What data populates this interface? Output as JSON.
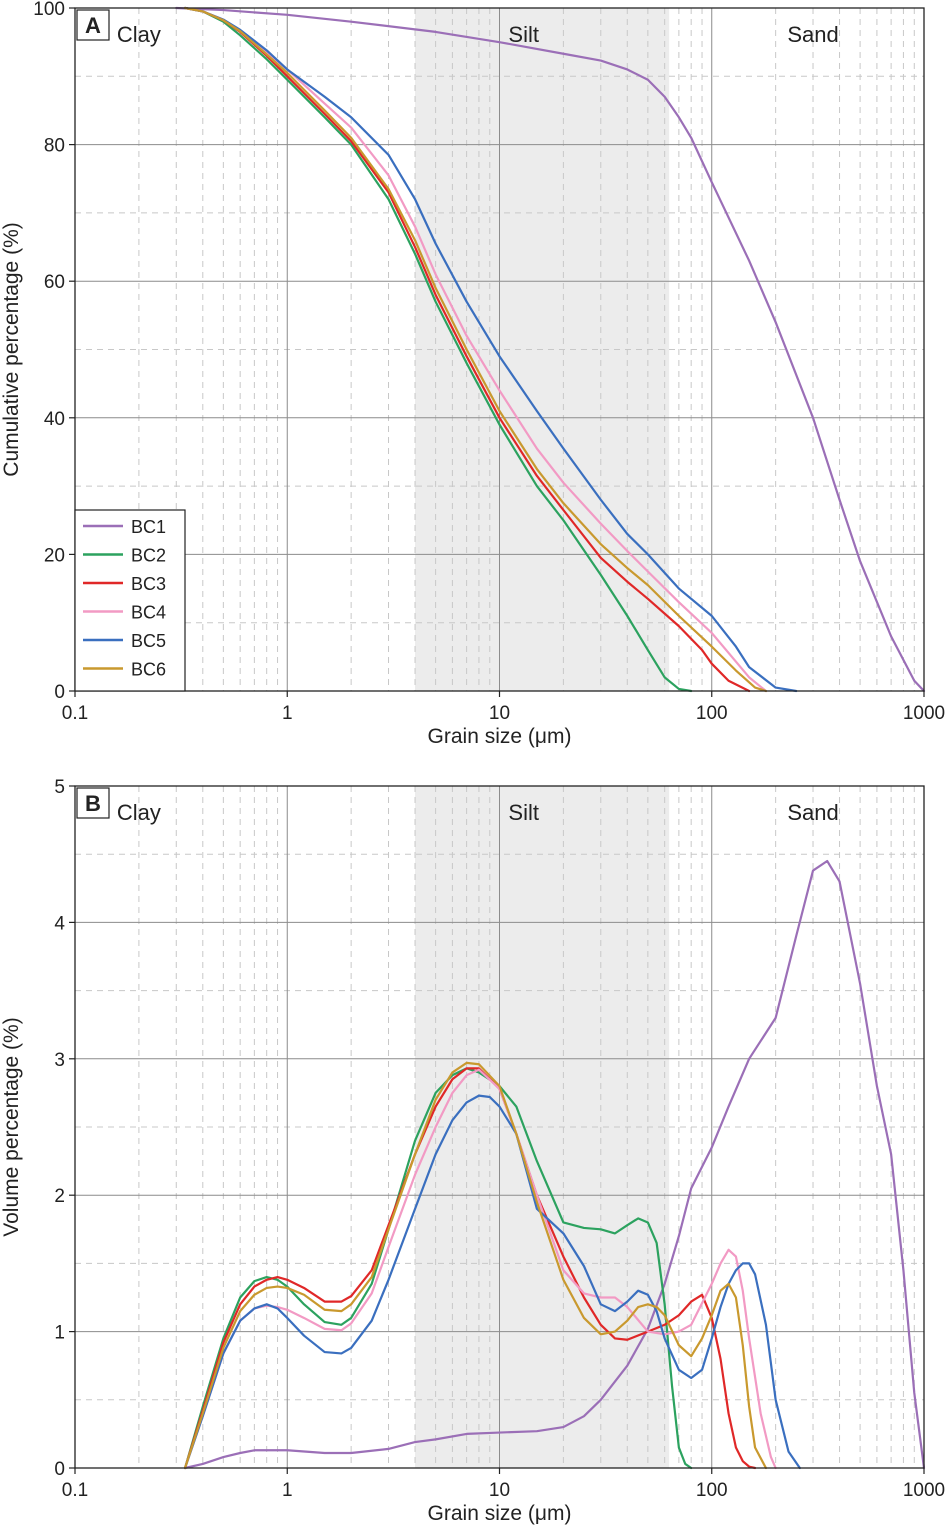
{
  "colors": {
    "BC1": "#9b6fb7",
    "BC2": "#2ca25f",
    "BC3": "#e02828",
    "BC4": "#f29ac4",
    "BC5": "#3a6fbf",
    "BC6": "#c9992e",
    "silt_band": "#ececec",
    "grid_major": "#8c8c8c",
    "grid_minor": "#c8c8c8"
  },
  "chart_data": [
    {
      "type": "line",
      "panel": "A",
      "xscale": "log",
      "xlabel": "Grain size (μm)",
      "ylabel": "Cumulative percentage (%)",
      "xlim": [
        0.1,
        1000
      ],
      "ylim": [
        0,
        100
      ],
      "xticks": [
        {
          "value": 0.1,
          "label": "0.1"
        },
        {
          "value": 1,
          "label": "1"
        },
        {
          "value": 10,
          "label": "10"
        },
        {
          "value": 100,
          "label": "100"
        },
        {
          "value": 1000,
          "label": "1000"
        }
      ],
      "yticks": [
        {
          "value": 0,
          "label": "0"
        },
        {
          "value": 20,
          "label": "20"
        },
        {
          "value": 40,
          "label": "40"
        },
        {
          "value": 60,
          "label": "60"
        },
        {
          "value": 80,
          "label": "80"
        },
        {
          "value": 100,
          "label": "100"
        }
      ],
      "zones": [
        {
          "label": "Clay",
          "at": 0.2
        },
        {
          "label": "Silt",
          "at": 13
        },
        {
          "label": "Sand",
          "at": 300
        }
      ],
      "silt_band": [
        4,
        63
      ],
      "legend": {
        "position": "bottom-left",
        "entries": [
          "BC1",
          "BC2",
          "BC3",
          "BC4",
          "BC5",
          "BC6"
        ]
      },
      "series": [
        {
          "name": "BC1",
          "x": [
            0.3,
            0.5,
            1,
            2,
            5,
            10,
            20,
            30,
            40,
            50,
            60,
            70,
            80,
            100,
            150,
            200,
            300,
            400,
            500,
            700,
            900,
            1000
          ],
          "y": [
            100,
            99.7,
            99,
            98,
            96.5,
            95,
            93.3,
            92.3,
            91,
            89.5,
            87,
            84,
            81,
            74.5,
            63,
            54,
            40,
            28,
            19,
            8,
            1.5,
            0
          ]
        },
        {
          "name": "BC2",
          "x": [
            0.33,
            0.4,
            0.5,
            0.6,
            0.8,
            1,
            1.5,
            2,
            3,
            4,
            5,
            7,
            10,
            15,
            20,
            30,
            40,
            50,
            60,
            70,
            80
          ],
          "y": [
            100,
            99.5,
            98,
            96,
            92.5,
            89.5,
            84,
            80,
            72,
            64,
            57,
            48,
            39,
            30,
            25,
            17,
            11,
            6,
            2,
            0.3,
            0
          ]
        },
        {
          "name": "BC3",
          "x": [
            0.33,
            0.4,
            0.5,
            0.6,
            0.8,
            1,
            1.5,
            2,
            3,
            4,
            5,
            7,
            10,
            15,
            20,
            30,
            40,
            50,
            70,
            90,
            100,
            120,
            150
          ],
          "y": [
            100,
            99.5,
            98.2,
            96.5,
            93,
            90,
            84.5,
            80.5,
            73,
            65,
            58,
            49,
            40,
            31.5,
            26.5,
            19.5,
            16,
            13.5,
            9.5,
            6,
            4,
            1.5,
            0
          ]
        },
        {
          "name": "BC4",
          "x": [
            0.33,
            0.4,
            0.5,
            0.6,
            0.8,
            1,
            1.5,
            2,
            3,
            4,
            5,
            7,
            10,
            15,
            20,
            30,
            40,
            50,
            70,
            100,
            150,
            180
          ],
          "y": [
            100,
            99.5,
            98.3,
            96.7,
            93.5,
            91,
            86,
            82.5,
            75.5,
            68,
            61,
            52,
            44,
            35.5,
            30.5,
            24.5,
            20.5,
            17.5,
            13,
            8.5,
            2,
            0
          ]
        },
        {
          "name": "BC5",
          "x": [
            0.33,
            0.4,
            0.5,
            0.6,
            0.8,
            1,
            1.5,
            2,
            3,
            4,
            5,
            7,
            10,
            15,
            20,
            30,
            40,
            50,
            70,
            100,
            130,
            150,
            200,
            250
          ],
          "y": [
            100,
            99.5,
            98.3,
            96.8,
            93.8,
            91,
            87,
            84,
            78.5,
            72,
            65.5,
            57,
            49,
            41,
            35.5,
            28,
            23,
            20,
            15,
            11,
            6.5,
            3.5,
            0.5,
            0
          ]
        },
        {
          "name": "BC6",
          "x": [
            0.33,
            0.4,
            0.5,
            0.6,
            0.8,
            1,
            1.5,
            2,
            3,
            4,
            5,
            7,
            10,
            15,
            20,
            30,
            40,
            50,
            70,
            100,
            130,
            160,
            180
          ],
          "y": [
            100,
            99.5,
            98.2,
            96.6,
            93.2,
            90.5,
            85,
            81,
            73.5,
            66,
            59,
            50,
            41,
            32.5,
            27.5,
            21.5,
            18,
            15.5,
            11,
            6.5,
            3,
            0.5,
            0
          ]
        }
      ]
    },
    {
      "type": "line",
      "panel": "B",
      "xscale": "log",
      "xlabel": "Grain size (μm)",
      "ylabel": "Volume percentage (%)",
      "xlim": [
        0.1,
        1000
      ],
      "ylim": [
        0,
        5
      ],
      "xticks": [
        {
          "value": 0.1,
          "label": "0.1"
        },
        {
          "value": 1,
          "label": "1"
        },
        {
          "value": 10,
          "label": "10"
        },
        {
          "value": 100,
          "label": "100"
        },
        {
          "value": 1000,
          "label": "1000"
        }
      ],
      "yticks": [
        {
          "value": 0,
          "label": "0"
        },
        {
          "value": 1,
          "label": "1"
        },
        {
          "value": 2,
          "label": "2"
        },
        {
          "value": 3,
          "label": "3"
        },
        {
          "value": 4,
          "label": "4"
        },
        {
          "value": 5,
          "label": "5"
        }
      ],
      "zones": [
        {
          "label": "Clay",
          "at": 0.2
        },
        {
          "label": "Silt",
          "at": 13
        },
        {
          "label": "Sand",
          "at": 300
        }
      ],
      "silt_band": [
        4,
        63
      ],
      "series": [
        {
          "name": "BC1",
          "x": [
            0.33,
            0.4,
            0.5,
            0.6,
            0.7,
            1,
            1.5,
            2,
            3,
            4,
            5,
            7,
            10,
            15,
            20,
            25,
            30,
            40,
            50,
            60,
            70,
            80,
            100,
            120,
            150,
            200,
            250,
            300,
            350,
            400,
            500,
            600,
            700,
            800,
            900,
            1000
          ],
          "y": [
            0,
            0.03,
            0.08,
            0.11,
            0.13,
            0.13,
            0.11,
            0.11,
            0.14,
            0.19,
            0.21,
            0.25,
            0.26,
            0.27,
            0.3,
            0.38,
            0.5,
            0.75,
            1.02,
            1.35,
            1.7,
            2.05,
            2.35,
            2.65,
            3.0,
            3.3,
            3.9,
            4.38,
            4.45,
            4.3,
            3.55,
            2.8,
            2.3,
            1.45,
            0.55,
            0
          ]
        },
        {
          "name": "BC2",
          "x": [
            0.33,
            0.4,
            0.5,
            0.6,
            0.7,
            0.8,
            0.9,
            1,
            1.2,
            1.5,
            1.8,
            2,
            2.5,
            3,
            4,
            5,
            6,
            7,
            8,
            10,
            12,
            15,
            20,
            25,
            30,
            35,
            40,
            45,
            50,
            55,
            60,
            65,
            70,
            75,
            80
          ],
          "y": [
            0,
            0.45,
            0.95,
            1.25,
            1.37,
            1.4,
            1.38,
            1.33,
            1.2,
            1.07,
            1.05,
            1.1,
            1.35,
            1.75,
            2.4,
            2.75,
            2.88,
            2.93,
            2.9,
            2.8,
            2.65,
            2.25,
            1.8,
            1.76,
            1.75,
            1.72,
            1.78,
            1.83,
            1.8,
            1.65,
            1.2,
            0.6,
            0.15,
            0.03,
            0
          ]
        },
        {
          "name": "BC3",
          "x": [
            0.33,
            0.4,
            0.5,
            0.6,
            0.7,
            0.8,
            0.9,
            1,
            1.2,
            1.5,
            1.8,
            2,
            2.5,
            3,
            4,
            5,
            6,
            7,
            8,
            10,
            12,
            15,
            20,
            25,
            30,
            35,
            40,
            50,
            60,
            70,
            80,
            90,
            100,
            110,
            120,
            130,
            140,
            150,
            160
          ],
          "y": [
            0,
            0.42,
            0.92,
            1.2,
            1.33,
            1.38,
            1.4,
            1.38,
            1.32,
            1.22,
            1.22,
            1.26,
            1.45,
            1.78,
            2.3,
            2.65,
            2.85,
            2.93,
            2.93,
            2.78,
            2.45,
            2.0,
            1.55,
            1.25,
            1.05,
            0.95,
            0.94,
            1.0,
            1.05,
            1.12,
            1.22,
            1.27,
            1.1,
            0.8,
            0.4,
            0.15,
            0.05,
            0.01,
            0
          ]
        },
        {
          "name": "BC4",
          "x": [
            0.33,
            0.4,
            0.5,
            0.6,
            0.7,
            0.8,
            0.9,
            1,
            1.2,
            1.5,
            1.8,
            2,
            2.5,
            3,
            4,
            5,
            6,
            7,
            8,
            10,
            12,
            15,
            20,
            25,
            30,
            35,
            40,
            50,
            60,
            70,
            80,
            100,
            110,
            120,
            130,
            140,
            150,
            170,
            190,
            200
          ],
          "y": [
            0,
            0.38,
            0.84,
            1.08,
            1.17,
            1.19,
            1.18,
            1.16,
            1.1,
            1.02,
            1.01,
            1.06,
            1.28,
            1.62,
            2.15,
            2.5,
            2.75,
            2.88,
            2.92,
            2.78,
            2.45,
            2.0,
            1.45,
            1.28,
            1.25,
            1.25,
            1.18,
            1.0,
            0.98,
            1.0,
            1.05,
            1.35,
            1.5,
            1.6,
            1.55,
            1.3,
            0.95,
            0.4,
            0.08,
            0
          ]
        },
        {
          "name": "BC5",
          "x": [
            0.33,
            0.4,
            0.5,
            0.6,
            0.7,
            0.8,
            0.9,
            1,
            1.2,
            1.5,
            1.8,
            2,
            2.5,
            3,
            4,
            5,
            6,
            7,
            8,
            9,
            10,
            12,
            15,
            20,
            25,
            30,
            35,
            40,
            45,
            50,
            55,
            60,
            70,
            80,
            90,
            100,
            110,
            120,
            130,
            140,
            150,
            160,
            180,
            200,
            230,
            260
          ],
          "y": [
            0,
            0.38,
            0.84,
            1.08,
            1.17,
            1.2,
            1.17,
            1.1,
            0.97,
            0.85,
            0.84,
            0.88,
            1.08,
            1.38,
            1.9,
            2.3,
            2.55,
            2.68,
            2.73,
            2.72,
            2.65,
            2.45,
            1.9,
            1.72,
            1.48,
            1.2,
            1.15,
            1.22,
            1.3,
            1.27,
            1.15,
            0.95,
            0.72,
            0.66,
            0.72,
            0.95,
            1.18,
            1.35,
            1.45,
            1.5,
            1.5,
            1.42,
            1.05,
            0.5,
            0.12,
            0
          ]
        },
        {
          "name": "BC6",
          "x": [
            0.33,
            0.4,
            0.5,
            0.6,
            0.7,
            0.8,
            0.9,
            1,
            1.2,
            1.5,
            1.8,
            2,
            2.5,
            3,
            4,
            5,
            6,
            7,
            8,
            10,
            12,
            15,
            20,
            25,
            30,
            35,
            40,
            45,
            50,
            55,
            60,
            70,
            80,
            90,
            100,
            110,
            120,
            130,
            140,
            150,
            160,
            180
          ],
          "y": [
            0,
            0.4,
            0.88,
            1.15,
            1.27,
            1.32,
            1.33,
            1.32,
            1.27,
            1.16,
            1.15,
            1.2,
            1.4,
            1.75,
            2.3,
            2.7,
            2.9,
            2.97,
            2.96,
            2.8,
            2.45,
            1.95,
            1.38,
            1.1,
            0.98,
            1.0,
            1.08,
            1.18,
            1.2,
            1.18,
            1.12,
            0.9,
            0.82,
            0.95,
            1.12,
            1.3,
            1.35,
            1.25,
            0.9,
            0.45,
            0.15,
            0
          ]
        }
      ]
    }
  ]
}
